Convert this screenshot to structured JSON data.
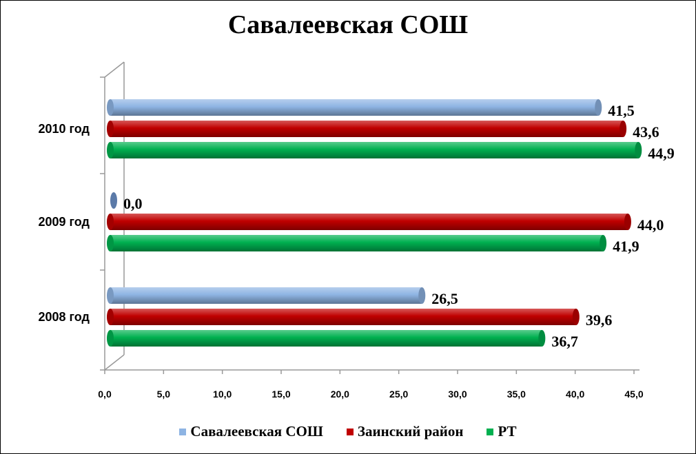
{
  "chart_data": {
    "type": "bar",
    "orientation": "horizontal",
    "title": "Савалеевская СОШ",
    "categories": [
      "2010 год",
      "2009 год",
      "2008 год"
    ],
    "series": [
      {
        "name": "Савалеевская СОШ",
        "color": "#8eb4e3",
        "values": [
          41.5,
          0.0,
          26.5
        ],
        "labels": [
          "41,5",
          "0,0",
          "26,5"
        ]
      },
      {
        "name": "Заинский район",
        "color": "#c00000",
        "values": [
          43.6,
          44.0,
          39.6
        ],
        "labels": [
          "43,6",
          "44,0",
          "39,6"
        ]
      },
      {
        "name": "РТ",
        "color": "#00b050",
        "values": [
          44.9,
          41.9,
          36.7
        ],
        "labels": [
          "44,9",
          "41,9",
          "36,7"
        ]
      }
    ],
    "xlim": [
      0,
      45
    ],
    "x_ticks": [
      "0,0",
      "5,0",
      "10,0",
      "15,0",
      "20,0",
      "25,0",
      "30,0",
      "35,0",
      "40,0",
      "45,0"
    ],
    "grid": false,
    "legend_position": "bottom"
  }
}
